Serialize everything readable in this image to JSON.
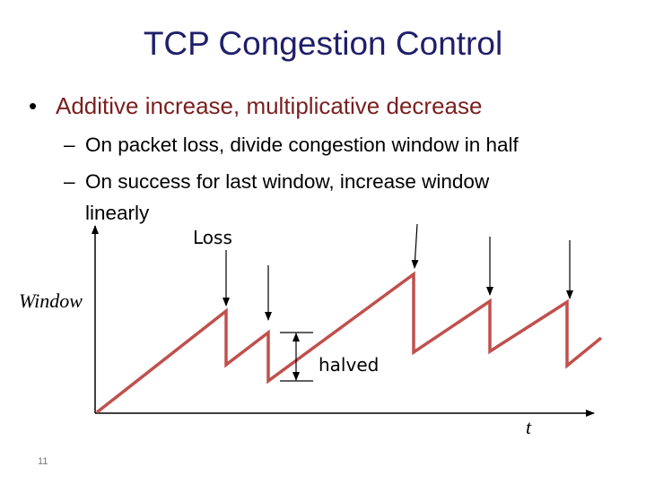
{
  "slide": {
    "title": "TCP Congestion Control",
    "bullet": "Additive increase, multiplicative decrease",
    "bullet_marker": "•",
    "sub_marker": "–",
    "sub_bullets": [
      "On packet loss, divide congestion window in half",
      "On success for last window, increase window"
    ],
    "sub_bullet_continuation": "linearly",
    "slide_number": "11"
  },
  "diagram": {
    "y_axis_label": "Window",
    "x_axis_label": "t",
    "loss_label": "Loss",
    "halved_label": "halved",
    "colors": {
      "sawtooth": "#c0504d",
      "axis": "#000000",
      "title": "#1f1f6b",
      "bullet": "#7a1f1f"
    }
  }
}
